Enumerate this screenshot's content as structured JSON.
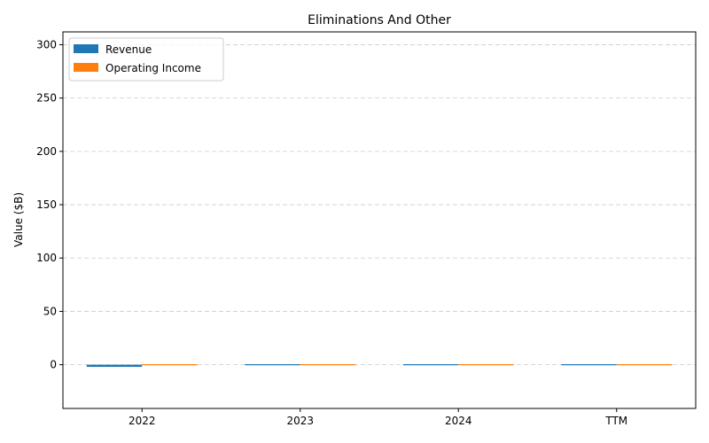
{
  "chart_data": {
    "type": "bar",
    "title": "Eliminations And Other",
    "xlabel": "",
    "ylabel": "Value ($B)",
    "categories": [
      "2022",
      "2023",
      "2024",
      "TTM"
    ],
    "series": [
      {
        "name": "Revenue",
        "color": "#1f77b4",
        "values": [
          -2.0,
          -0.5,
          -0.5,
          -0.5
        ]
      },
      {
        "name": "Operating Income",
        "color": "#ff7f0e",
        "values": [
          0,
          0,
          0,
          0
        ]
      }
    ],
    "ylim": [
      -41,
      312
    ],
    "yticks": [
      0,
      50,
      100,
      150,
      200,
      250,
      300
    ],
    "grid": "y-dashed",
    "legend_position": "top-left"
  }
}
